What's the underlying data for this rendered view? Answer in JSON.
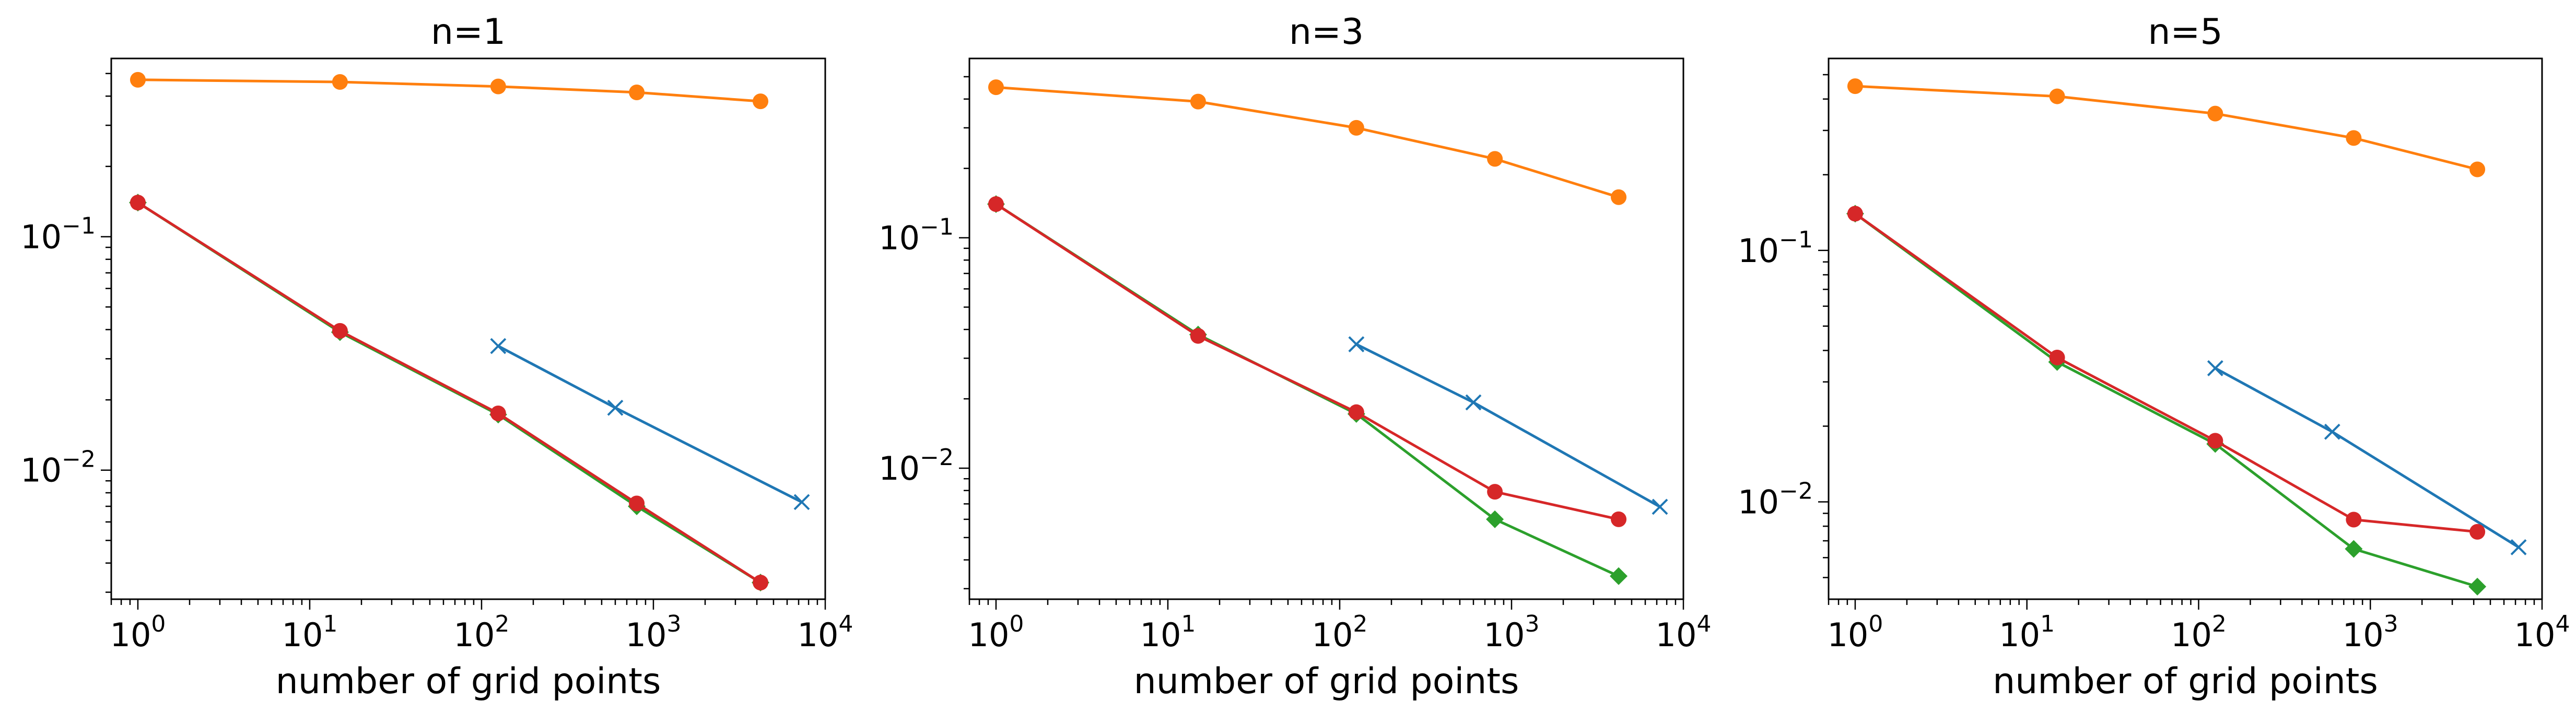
{
  "chart_data": [
    {
      "type": "line",
      "title": "n=1",
      "xlabel": "number of grid points",
      "ylabel": "",
      "xscale": "log",
      "yscale": "log",
      "xlim": [
        0.7,
        10000
      ],
      "ylim": [
        0.0028,
        0.58
      ],
      "xticks": [
        {
          "value": 1,
          "base": "10",
          "exp": "0"
        },
        {
          "value": 10,
          "base": "10",
          "exp": "1"
        },
        {
          "value": 100,
          "base": "10",
          "exp": "2"
        },
        {
          "value": 1000,
          "base": "10",
          "exp": "3"
        },
        {
          "value": 10000,
          "base": "10",
          "exp": "4"
        }
      ],
      "yticks": [
        {
          "value": 0.1,
          "base": "10",
          "exp": "−1"
        },
        {
          "value": 0.01,
          "base": "10",
          "exp": "−2"
        }
      ],
      "grid": false,
      "series": [
        {
          "color": "#1f77b4",
          "marker": "x",
          "x": [
            125,
            600,
            7300
          ],
          "y": [
            0.034,
            0.0185,
            0.0073
          ]
        },
        {
          "color": "#ff7f0e",
          "marker": "o",
          "x": [
            1,
            15,
            125,
            800,
            4200
          ],
          "y": [
            0.47,
            0.46,
            0.44,
            0.415,
            0.38
          ]
        },
        {
          "color": "#2ca02c",
          "marker": "D",
          "x": [
            1,
            15,
            125,
            800,
            4200
          ],
          "y": [
            0.14,
            0.039,
            0.0173,
            0.007,
            0.0033
          ]
        },
        {
          "color": "#d62728",
          "marker": "o",
          "x": [
            1,
            15,
            125,
            800,
            4200
          ],
          "y": [
            0.14,
            0.0395,
            0.0175,
            0.0072,
            0.0033
          ]
        }
      ]
    },
    {
      "type": "line",
      "title": "n=3",
      "xlabel": "number of grid points",
      "ylabel": "",
      "xscale": "log",
      "yscale": "log",
      "xlim": [
        0.7,
        10000
      ],
      "ylim": [
        0.0027,
        0.6
      ],
      "xticks": [
        {
          "value": 1,
          "base": "10",
          "exp": "0"
        },
        {
          "value": 10,
          "base": "10",
          "exp": "1"
        },
        {
          "value": 100,
          "base": "10",
          "exp": "2"
        },
        {
          "value": 1000,
          "base": "10",
          "exp": "3"
        },
        {
          "value": 10000,
          "base": "10",
          "exp": "4"
        }
      ],
      "yticks": [
        {
          "value": 0.1,
          "base": "10",
          "exp": "−1"
        },
        {
          "value": 0.01,
          "base": "10",
          "exp": "−2"
        }
      ],
      "grid": false,
      "series": [
        {
          "color": "#1f77b4",
          "marker": "x",
          "x": [
            125,
            600,
            7300
          ],
          "y": [
            0.0345,
            0.0193,
            0.0068
          ]
        },
        {
          "color": "#ff7f0e",
          "marker": "o",
          "x": [
            1,
            15,
            125,
            800,
            4200
          ],
          "y": [
            0.45,
            0.39,
            0.3,
            0.22,
            0.15
          ]
        },
        {
          "color": "#2ca02c",
          "marker": "D",
          "x": [
            1,
            15,
            125,
            800,
            4200
          ],
          "y": [
            0.14,
            0.038,
            0.0172,
            0.006,
            0.0034
          ]
        },
        {
          "color": "#d62728",
          "marker": "o",
          "x": [
            1,
            15,
            125,
            800,
            4200
          ],
          "y": [
            0.14,
            0.0375,
            0.0175,
            0.0079,
            0.006
          ]
        }
      ]
    },
    {
      "type": "line",
      "title": "n=5",
      "xlabel": "number of grid points",
      "ylabel": "",
      "xscale": "log",
      "yscale": "log",
      "xlim": [
        0.7,
        10000
      ],
      "ylim": [
        0.0041,
        0.58
      ],
      "xticks": [
        {
          "value": 1,
          "base": "10",
          "exp": "0"
        },
        {
          "value": 10,
          "base": "10",
          "exp": "1"
        },
        {
          "value": 100,
          "base": "10",
          "exp": "2"
        },
        {
          "value": 1000,
          "base": "10",
          "exp": "3"
        },
        {
          "value": 10000,
          "base": "10",
          "exp": "4"
        }
      ],
      "yticks": [
        {
          "value": 0.1,
          "base": "10",
          "exp": "−1"
        },
        {
          "value": 0.01,
          "base": "10",
          "exp": "−2"
        }
      ],
      "grid": false,
      "series": [
        {
          "color": "#1f77b4",
          "marker": "x",
          "x": [
            125,
            600,
            7300
          ],
          "y": [
            0.034,
            0.019,
            0.0066
          ]
        },
        {
          "color": "#ff7f0e",
          "marker": "o",
          "x": [
            1,
            15,
            125,
            800,
            4200
          ],
          "y": [
            0.45,
            0.41,
            0.35,
            0.28,
            0.21
          ]
        },
        {
          "color": "#2ca02c",
          "marker": "D",
          "x": [
            1,
            15,
            125,
            800,
            4200
          ],
          "y": [
            0.14,
            0.036,
            0.017,
            0.0065,
            0.0046
          ]
        },
        {
          "color": "#d62728",
          "marker": "o",
          "x": [
            1,
            15,
            125,
            800,
            4200
          ],
          "y": [
            0.14,
            0.0375,
            0.0175,
            0.0085,
            0.0076
          ]
        }
      ]
    }
  ]
}
